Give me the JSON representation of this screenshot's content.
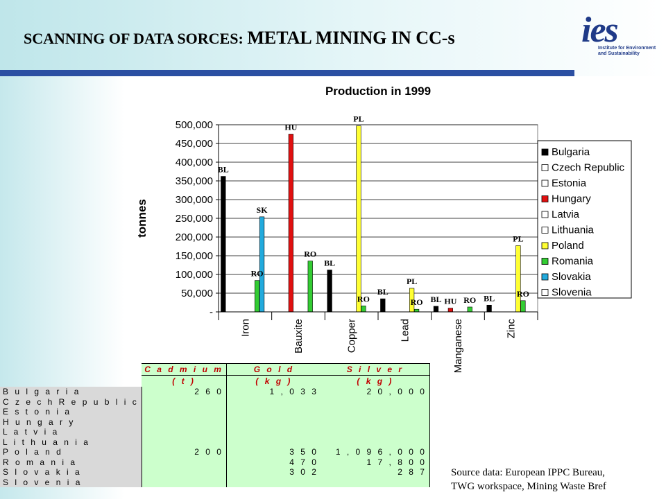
{
  "slide": {
    "title_prefix": "SCANNING OF DATA SORCES: ",
    "title_main": "METAL MINING IN CC-s",
    "logo": {
      "mark": "ies",
      "text": "Institute for Environment and Sustainability"
    },
    "source_line1": "Source data: European IPPC Bureau,",
    "source_line2": "TWG workspace, Mining Waste Bref"
  },
  "colors": {
    "Bulgaria": "#000000",
    "Czech Republic": "#ffffff",
    "Estonia": "#ffffff",
    "Hungary": "#e01010",
    "Latvia": "#ffffff",
    "Lithuania": "#ffffff",
    "Poland": "#ffff33",
    "Romania": "#33cc33",
    "Slovakia": "#22aadd",
    "Slovenia": "#ffffff"
  },
  "chart_data": {
    "type": "bar",
    "title": "Production in 1999",
    "ylabel": "tonnes",
    "xlabel": "",
    "ylim": [
      0,
      500000
    ],
    "yticks": [
      "-",
      "50,000",
      "100,000",
      "150,000",
      "200,000",
      "250,000",
      "300,000",
      "350,000",
      "400,000",
      "450,000",
      "500,000"
    ],
    "categories": [
      "Iron",
      "Bauxite",
      "Copper",
      "Lead",
      "Manganese",
      "Zinc"
    ],
    "series": [
      {
        "name": "Bulgaria",
        "values": [
          362000,
          0,
          112000,
          35000,
          15000,
          18000
        ]
      },
      {
        "name": "Czech Republic",
        "values": [
          0,
          0,
          0,
          0,
          0,
          0
        ]
      },
      {
        "name": "Estonia",
        "values": [
          0,
          0,
          0,
          0,
          0,
          0
        ]
      },
      {
        "name": "Hungary",
        "values": [
          0,
          475000,
          0,
          0,
          10000,
          0
        ]
      },
      {
        "name": "Latvia",
        "values": [
          0,
          0,
          0,
          0,
          0,
          0
        ]
      },
      {
        "name": "Lithuania",
        "values": [
          0,
          0,
          0,
          0,
          0,
          0
        ]
      },
      {
        "name": "Poland",
        "values": [
          0,
          0,
          497000,
          63000,
          0,
          177000
        ]
      },
      {
        "name": "Romania",
        "values": [
          84000,
          136000,
          16000,
          7000,
          13000,
          30000
        ]
      },
      {
        "name": "Slovakia",
        "values": [
          254000,
          0,
          0,
          0,
          0,
          0
        ]
      },
      {
        "name": "Slovenia",
        "values": [
          0,
          0,
          0,
          0,
          0,
          0
        ]
      }
    ],
    "data_labels": [
      {
        "category": "Iron",
        "series": "Bulgaria",
        "text": "BL"
      },
      {
        "category": "Iron",
        "series": "Romania",
        "text": "RO"
      },
      {
        "category": "Iron",
        "series": "Slovakia",
        "text": "SK"
      },
      {
        "category": "Bauxite",
        "series": "Hungary",
        "text": "HU"
      },
      {
        "category": "Bauxite",
        "series": "Romania",
        "text": "RO"
      },
      {
        "category": "Copper",
        "series": "Bulgaria",
        "text": "BL"
      },
      {
        "category": "Copper",
        "series": "Poland",
        "text": "PL"
      },
      {
        "category": "Copper",
        "series": "Romania",
        "text": "RO"
      },
      {
        "category": "Lead",
        "series": "Bulgaria",
        "text": "BL"
      },
      {
        "category": "Lead",
        "series": "Poland",
        "text": "PL"
      },
      {
        "category": "Lead",
        "series": "Romania",
        "text": "RO"
      },
      {
        "category": "Manganese",
        "series": "Bulgaria",
        "text": "BL"
      },
      {
        "category": "Manganese",
        "series": "Hungary",
        "text": "HU"
      },
      {
        "category": "Manganese",
        "series": "Romania",
        "text": "RO"
      },
      {
        "category": "Zinc",
        "series": "Bulgaria",
        "text": "BL"
      },
      {
        "category": "Zinc",
        "series": "Poland",
        "text": "PL"
      },
      {
        "category": "Zinc",
        "series": "Romania",
        "text": "RO"
      }
    ],
    "legend_position": "right",
    "grid": true
  },
  "table": {
    "headers": [
      {
        "line1": "C a d m i u m",
        "line2": "( t )"
      },
      {
        "line1": "G o l d",
        "line2": "( k g )"
      },
      {
        "line1": "S i l v e r",
        "line2": "( k g )"
      }
    ],
    "rows": [
      {
        "name": "B u l g a r i a",
        "cadmium": "2 6 0",
        "gold": "1 , 0 3 3",
        "silver": "2 0 , 0 0 0"
      },
      {
        "name": "C z e c h  R e p u b l i c",
        "cadmium": "",
        "gold": "",
        "silver": ""
      },
      {
        "name": "E s t o n i a",
        "cadmium": "",
        "gold": "",
        "silver": ""
      },
      {
        "name": "H u n g a r y",
        "cadmium": "",
        "gold": "",
        "silver": ""
      },
      {
        "name": "L a t v i a",
        "cadmium": "",
        "gold": "",
        "silver": ""
      },
      {
        "name": "L i t h u a n i a",
        "cadmium": "",
        "gold": "",
        "silver": ""
      },
      {
        "name": "P o l a n d",
        "cadmium": "2 0 0",
        "gold": "3 5 0",
        "silver": "1 , 0 9 6 , 0 0 0"
      },
      {
        "name": "R o m a n i a",
        "cadmium": "",
        "gold": "4 7 0",
        "silver": "1 7 , 8 0 0"
      },
      {
        "name": "S l o v a k i a",
        "cadmium": "",
        "gold": "3 0 2",
        "silver": "2 8 7"
      },
      {
        "name": "S l o v e n i a",
        "cadmium": "",
        "gold": "",
        "silver": ""
      }
    ]
  }
}
